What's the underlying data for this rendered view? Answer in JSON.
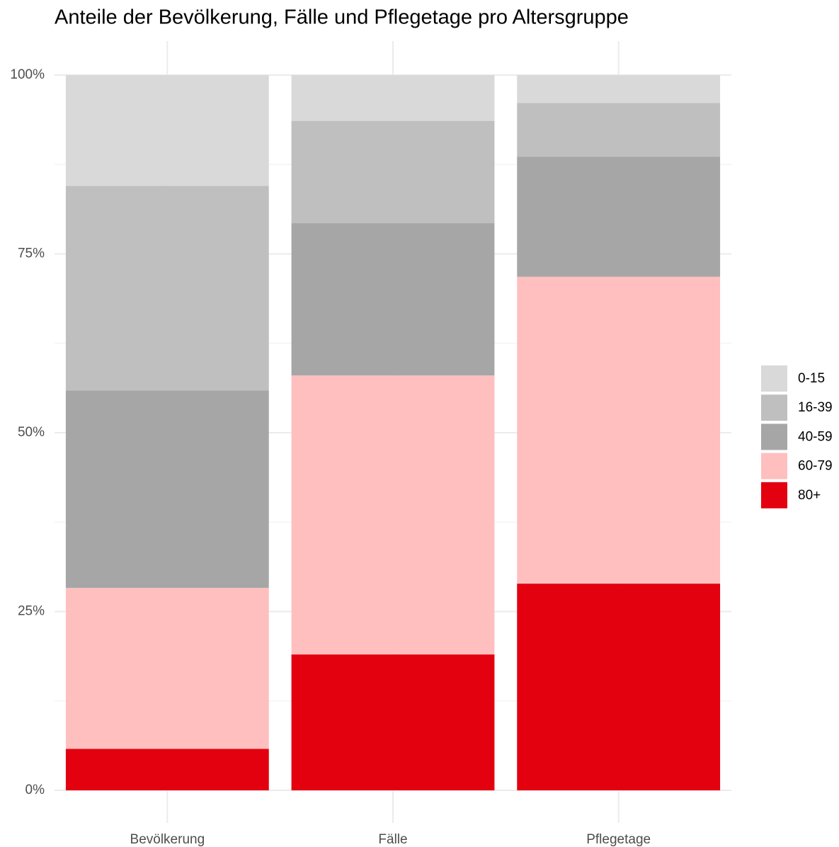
{
  "chart_data": {
    "type": "stacked_bar",
    "title": "Anteile der Bevölkerung, Fälle und Pflegetage pro Altersgruppe",
    "categories": [
      "Bevölkerung",
      "Fälle",
      "Pflegetage"
    ],
    "series": [
      {
        "name": "0-15",
        "color": "#d9d9d9",
        "values": [
          15.5,
          6.4,
          3.9
        ]
      },
      {
        "name": "16-39",
        "color": "#bfbfbf",
        "values": [
          28.6,
          14.3,
          7.5
        ]
      },
      {
        "name": "40-59",
        "color": "#a6a6a6",
        "values": [
          27.6,
          21.3,
          16.8
        ]
      },
      {
        "name": "60-79",
        "color": "#ffbfbf",
        "values": [
          22.5,
          39.0,
          42.9
        ]
      },
      {
        "name": "80+",
        "color": "#e3000f",
        "values": [
          5.8,
          19.0,
          28.9
        ]
      }
    ],
    "ylim": [
      0,
      100
    ],
    "yticks": [
      {
        "value": 0,
        "label": "0%"
      },
      {
        "value": 25,
        "label": "25%"
      },
      {
        "value": 50,
        "label": "50%"
      },
      {
        "value": 75,
        "label": "75%"
      },
      {
        "value": 100,
        "label": "100%"
      }
    ],
    "minor_yticks": [
      12.5,
      37.5,
      62.5,
      87.5
    ],
    "grid": true,
    "legend": "right"
  }
}
